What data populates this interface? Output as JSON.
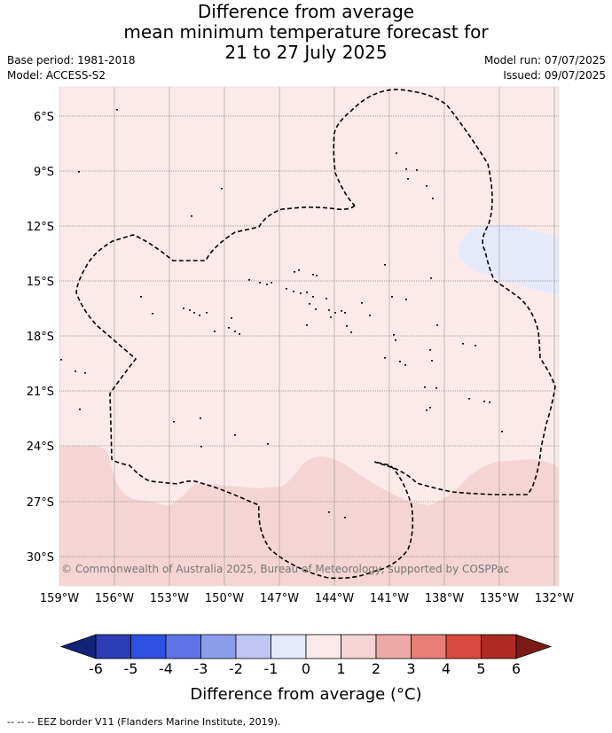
{
  "header": {
    "title_line1": "Difference from average",
    "title_line2": "mean minimum temperature forecast for",
    "title_line3": "21 to 27 July 2025",
    "base_period": "Base period: 1981-2018",
    "model": "Model: ACCESS-S2",
    "model_run": "Model run: 07/07/2025",
    "issued": "Issued: 09/07/2025"
  },
  "map": {
    "lat_labels": [
      "6°S",
      "9°S",
      "12°S",
      "15°S",
      "18°S",
      "21°S",
      "24°S",
      "27°S",
      "30°S"
    ],
    "lon_labels": [
      "159°W",
      "156°W",
      "153°W",
      "150°W",
      "147°W",
      "144°W",
      "141°W",
      "138°W",
      "135°W",
      "132°W"
    ],
    "copyright": "© Commonwealth of Australia 2025, Bureau of Meteorology, supported by COSPPac",
    "colors": {
      "zero_to_one": "#fbeae9",
      "one_to_two": "#f4d5d3",
      "minus_one_to_zero": "#e6e9fa",
      "eez_border": "#000000",
      "grid": "#888888"
    }
  },
  "colorbar": {
    "ticks": [
      "-6",
      "-5",
      "-4",
      "-3",
      "-2",
      "-1",
      "0",
      "1",
      "2",
      "3",
      "4",
      "5",
      "6"
    ],
    "colors": [
      "#14237a",
      "#2a3db4",
      "#3050e2",
      "#5d73e6",
      "#8b9ced",
      "#c0c6f4",
      "#e6e9fa",
      "#fbeae9",
      "#f4d5d3",
      "#eeaaa7",
      "#e67e76",
      "#d9493f",
      "#ad2a22",
      "#7b1a15"
    ],
    "title": "Difference from average (°C)"
  },
  "footnote": "--  --  -- EEZ border V11 (Flanders Marine Institute, 2019)."
}
